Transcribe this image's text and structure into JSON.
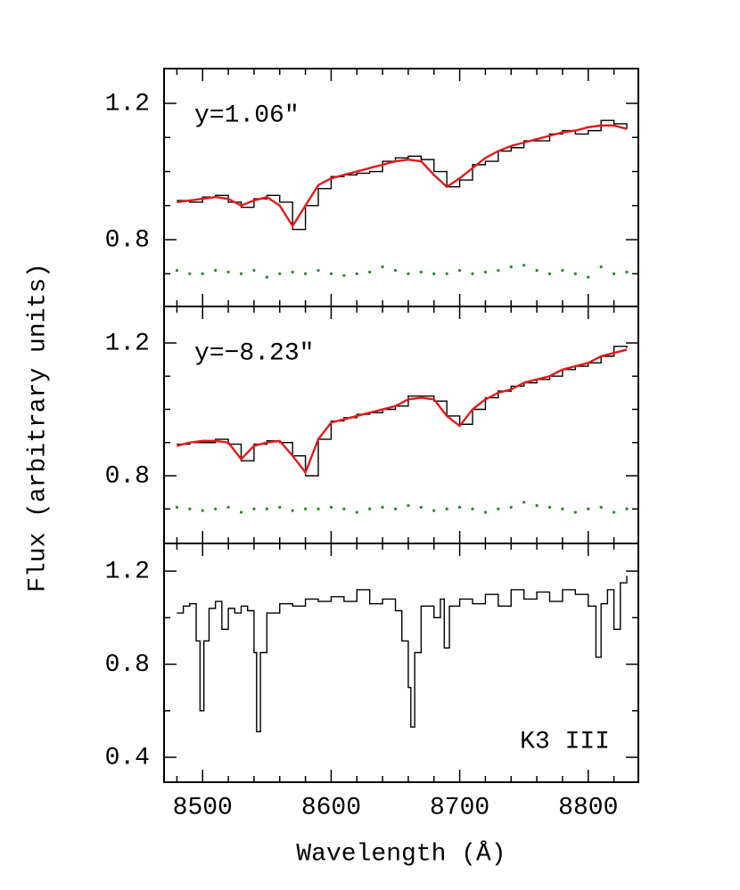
{
  "chart_data": [
    {
      "type": "line",
      "annotation": "y=1.06″",
      "xlim": [
        8470,
        8839
      ],
      "ylim": [
        0.604,
        1.302
      ],
      "yticks": [
        0.8,
        1.2
      ],
      "yminorticks": [
        0.7,
        0.9,
        1.0,
        1.1
      ],
      "xticks": [
        8500,
        8600,
        8700,
        8800
      ],
      "xminorticks": [
        8480,
        8520,
        8540,
        8560,
        8580,
        8620,
        8640,
        8660,
        8680,
        8720,
        8740,
        8760,
        8780,
        8820
      ],
      "x": [
        8480,
        8490,
        8500,
        8510,
        8520,
        8530,
        8540,
        8550,
        8560,
        8570,
        8580,
        8590,
        8600,
        8610,
        8620,
        8630,
        8640,
        8650,
        8660,
        8670,
        8680,
        8690,
        8700,
        8710,
        8720,
        8730,
        8740,
        8750,
        8760,
        8770,
        8780,
        8790,
        8800,
        8810,
        8820,
        8830
      ],
      "series": [
        {
          "color": "#000000",
          "style": "step",
          "values": [
            0.915,
            0.91,
            0.925,
            0.93,
            0.91,
            0.895,
            0.92,
            0.93,
            0.91,
            0.83,
            0.9,
            0.95,
            0.985,
            0.99,
            0.995,
            1.0,
            1.03,
            1.04,
            1.045,
            1.035,
            1.0,
            0.955,
            0.975,
            1.02,
            1.03,
            1.06,
            1.07,
            1.09,
            1.09,
            1.11,
            1.12,
            1.11,
            1.12,
            1.15,
            1.14,
            1.125
          ]
        },
        {
          "color": "#e41a1c",
          "style": "line",
          "values": [
            0.91,
            0.915,
            0.92,
            0.925,
            0.92,
            0.9,
            0.915,
            0.925,
            0.9,
            0.84,
            0.9,
            0.96,
            0.98,
            0.99,
            1.0,
            1.01,
            1.02,
            1.03,
            1.035,
            1.03,
            0.99,
            0.955,
            0.98,
            1.01,
            1.04,
            1.06,
            1.075,
            1.085,
            1.095,
            1.105,
            1.115,
            1.12,
            1.13,
            1.135,
            1.135,
            1.125
          ]
        },
        {
          "color": "#228b22",
          "style": "points",
          "values": [
            0.71,
            0.7,
            0.7,
            0.71,
            0.705,
            0.7,
            0.71,
            0.69,
            0.7,
            0.705,
            0.7,
            0.71,
            0.7,
            0.695,
            0.7,
            0.705,
            0.72,
            0.71,
            0.7,
            0.705,
            0.7,
            0.7,
            0.71,
            0.7,
            0.705,
            0.71,
            0.72,
            0.725,
            0.71,
            0.7,
            0.71,
            0.7,
            0.69,
            0.72,
            0.7,
            0.705
          ]
        }
      ]
    },
    {
      "type": "line",
      "annotation": "y=−8.23″",
      "ylabel": "Flux (arbitrary units)",
      "xlim": [
        8470,
        8839
      ],
      "ylim": [
        0.596,
        1.31
      ],
      "yticks": [
        0.8,
        1.2
      ],
      "yminorticks": [
        0.7,
        0.9,
        1.0,
        1.1
      ],
      "xticks": [
        8500,
        8600,
        8700,
        8800
      ],
      "xminorticks": [
        8480,
        8520,
        8540,
        8560,
        8580,
        8620,
        8640,
        8660,
        8680,
        8720,
        8740,
        8760,
        8780,
        8820
      ],
      "x": [
        8480,
        8490,
        8500,
        8510,
        8520,
        8530,
        8540,
        8550,
        8560,
        8570,
        8580,
        8590,
        8600,
        8610,
        8620,
        8630,
        8640,
        8650,
        8660,
        8670,
        8680,
        8690,
        8700,
        8710,
        8720,
        8730,
        8740,
        8750,
        8760,
        8770,
        8780,
        8790,
        8800,
        8810,
        8820,
        8830
      ],
      "series": [
        {
          "color": "#000000",
          "style": "step",
          "values": [
            0.895,
            0.9,
            0.9,
            0.91,
            0.895,
            0.845,
            0.895,
            0.905,
            0.9,
            0.86,
            0.8,
            0.91,
            0.965,
            0.975,
            0.985,
            0.99,
            1.0,
            1.01,
            1.04,
            1.04,
            1.025,
            0.98,
            0.955,
            1.0,
            1.035,
            1.055,
            1.07,
            1.08,
            1.09,
            1.1,
            1.12,
            1.13,
            1.14,
            1.16,
            1.19,
            1.185
          ]
        },
        {
          "color": "#e41a1c",
          "style": "line",
          "values": [
            0.89,
            0.9,
            0.905,
            0.905,
            0.9,
            0.85,
            0.89,
            0.9,
            0.905,
            0.86,
            0.81,
            0.91,
            0.96,
            0.97,
            0.98,
            0.99,
            1.0,
            1.01,
            1.03,
            1.035,
            1.03,
            0.98,
            0.95,
            1.0,
            1.03,
            1.05,
            1.06,
            1.08,
            1.09,
            1.1,
            1.12,
            1.13,
            1.14,
            1.16,
            1.17,
            1.18
          ]
        },
        {
          "color": "#228b22",
          "style": "points",
          "values": [
            0.705,
            0.7,
            0.695,
            0.7,
            0.705,
            0.69,
            0.7,
            0.7,
            0.705,
            0.695,
            0.7,
            0.7,
            0.705,
            0.7,
            0.69,
            0.7,
            0.705,
            0.7,
            0.71,
            0.705,
            0.695,
            0.7,
            0.705,
            0.7,
            0.69,
            0.7,
            0.705,
            0.72,
            0.71,
            0.705,
            0.7,
            0.69,
            0.7,
            0.705,
            0.69,
            0.7
          ]
        }
      ]
    },
    {
      "type": "line",
      "annotation": "K3 III",
      "xlabel": "Wavelength (Å)",
      "xlim": [
        8470,
        8839
      ],
      "ylim": [
        0.293,
        1.319
      ],
      "yticks": [
        0.4,
        0.8,
        1.2
      ],
      "yminorticks": [
        0.6,
        1.0
      ],
      "xticks": [
        8500,
        8600,
        8700,
        8800
      ],
      "xminorticks": [
        8480,
        8520,
        8540,
        8560,
        8580,
        8620,
        8640,
        8660,
        8680,
        8720,
        8740,
        8760,
        8780,
        8820
      ],
      "x": [
        8480,
        8485,
        8490,
        8495,
        8498,
        8501,
        8505,
        8510,
        8515,
        8520,
        8525,
        8530,
        8535,
        8540,
        8542,
        8545,
        8550,
        8560,
        8570,
        8580,
        8590,
        8600,
        8610,
        8620,
        8630,
        8640,
        8650,
        8655,
        8660,
        8662,
        8665,
        8670,
        8680,
        8685,
        8688,
        8692,
        8700,
        8710,
        8720,
        8730,
        8740,
        8750,
        8760,
        8770,
        8780,
        8790,
        8800,
        8806,
        8810,
        8815,
        8820,
        8825,
        8830
      ],
      "series": [
        {
          "color": "#000000",
          "style": "step",
          "values": [
            1.02,
            1.05,
            1.06,
            0.9,
            0.6,
            0.9,
            1.04,
            1.07,
            0.95,
            1.04,
            1.02,
            1.05,
            1.03,
            0.85,
            0.51,
            0.85,
            1.02,
            1.06,
            1.05,
            1.08,
            1.07,
            1.09,
            1.07,
            1.12,
            1.06,
            1.08,
            1.03,
            0.9,
            0.7,
            0.53,
            0.85,
            1.05,
            1.0,
            1.08,
            0.87,
            1.05,
            1.08,
            1.06,
            1.1,
            1.05,
            1.12,
            1.08,
            1.11,
            1.07,
            1.12,
            1.1,
            1.05,
            0.83,
            1.06,
            1.12,
            0.95,
            1.15,
            1.18
          ]
        }
      ]
    }
  ]
}
